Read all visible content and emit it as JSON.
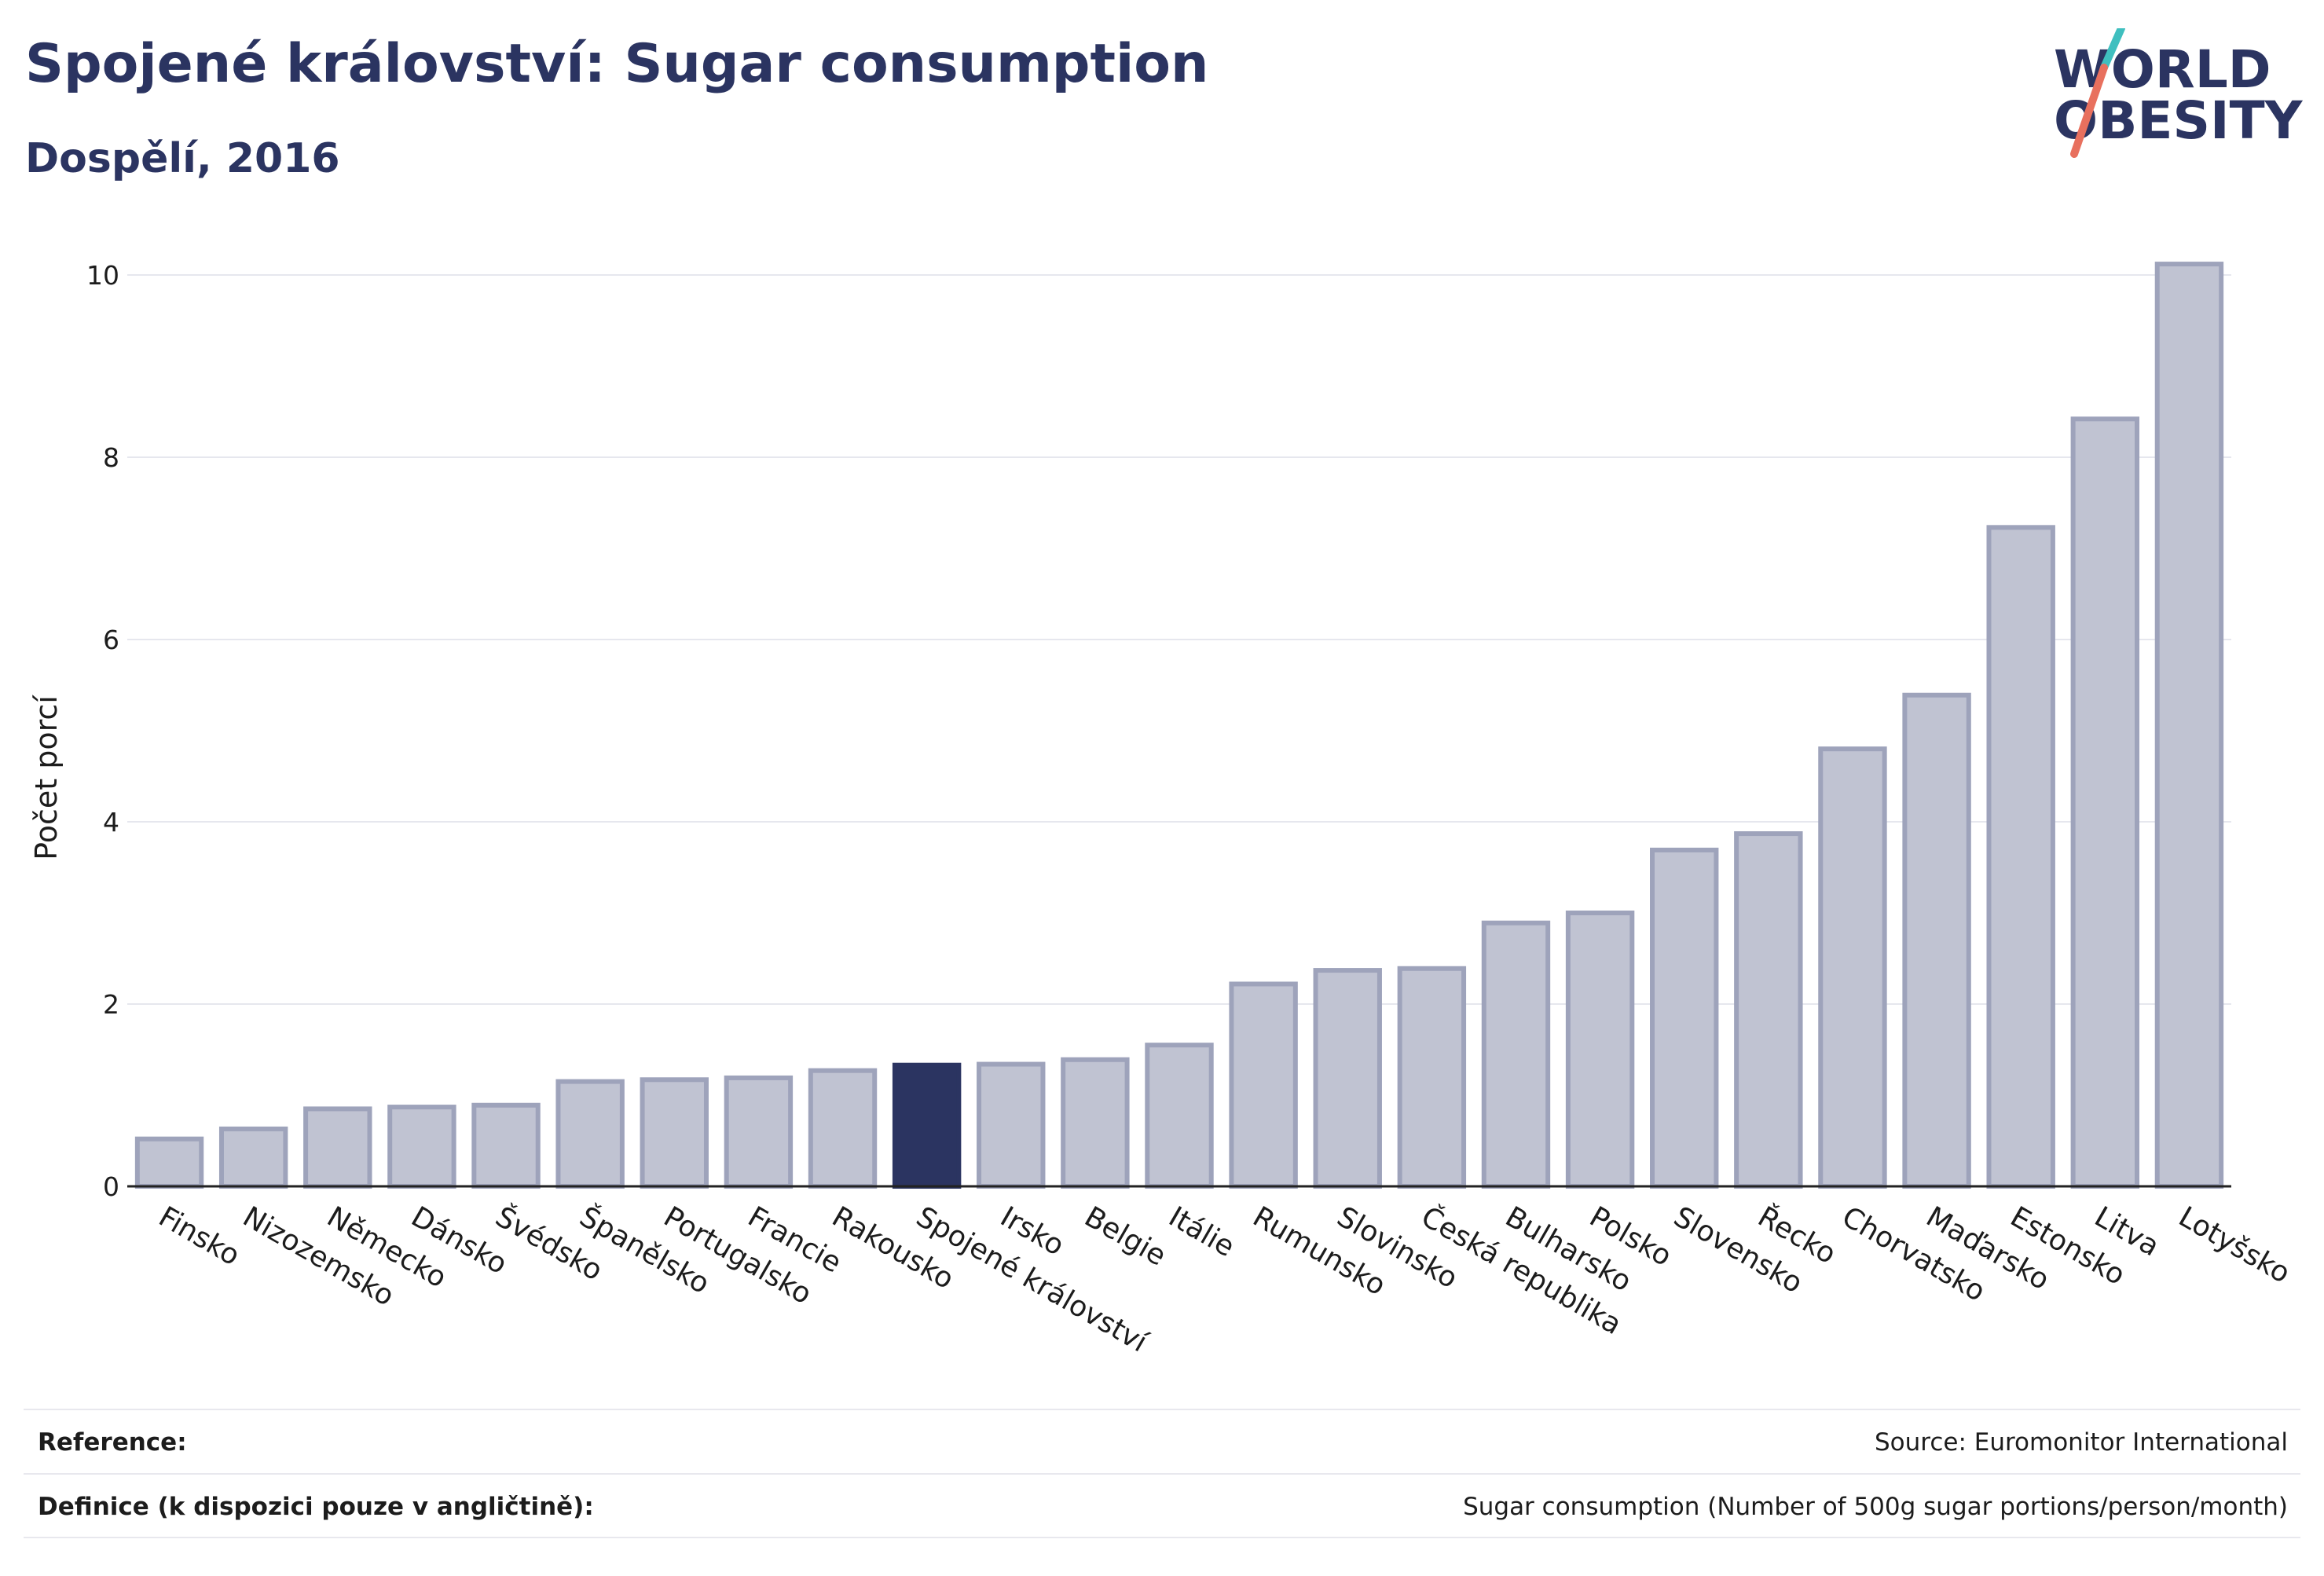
{
  "header": {
    "title": "Spojené království: Sugar consumption",
    "subtitle": "Dospělí, 2016"
  },
  "logo": {
    "line1": "WORLD",
    "line2": "OBESITY",
    "accent_teal": "#3fbfbf",
    "accent_coral": "#e8705e",
    "text_color": "#2b3461"
  },
  "chart_data": {
    "type": "bar",
    "ylabel": "Počet porcí",
    "xlabel": "",
    "ylim": [
      0,
      10.5
    ],
    "yticks": [
      0,
      2,
      4,
      6,
      8,
      10
    ],
    "grid": true,
    "highlight": "Spojené království",
    "colors": {
      "bar": "#c0c3d2",
      "bar_edge": "#9ea3bb",
      "highlight": "#2b3461",
      "grid": "#e6e7ee"
    },
    "categories": [
      "Finsko",
      "Nizozemsko",
      "Německo",
      "Dánsko",
      "Švédsko",
      "Španělsko",
      "Portugalsko",
      "Francie",
      "Rakousko",
      "Spojené království",
      "Irsko",
      "Belgie",
      "Itálie",
      "Rumunsko",
      "Slovinsko",
      "Česká republika",
      "Bulharsko",
      "Polsko",
      "Slovensko",
      "Řecko",
      "Chorvatsko",
      "Maďarsko",
      "Estonsko",
      "Litva",
      "Lotyšsko"
    ],
    "values": [
      0.52,
      0.63,
      0.85,
      0.87,
      0.89,
      1.15,
      1.17,
      1.19,
      1.27,
      1.33,
      1.34,
      1.39,
      1.55,
      2.22,
      2.37,
      2.39,
      2.89,
      3.0,
      3.69,
      3.87,
      4.8,
      5.39,
      7.23,
      8.42,
      10.12
    ]
  },
  "footer": {
    "reference_label": "Reference:",
    "reference_value": "Source: Euromonitor International",
    "definition_label": "Definice (k dispozici pouze v angličtině):",
    "definition_value": "Sugar consumption (Number of 500g sugar portions/person/month)"
  }
}
